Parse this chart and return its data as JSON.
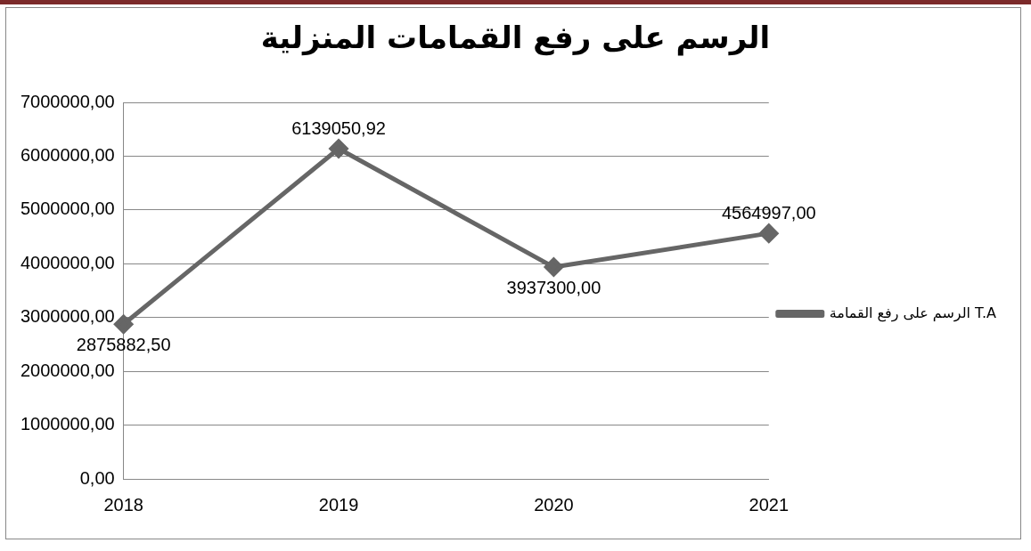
{
  "chart_data": {
    "type": "line",
    "title": "الرسم على رفع القمامات المنزلية",
    "categories": [
      "2018",
      "2019",
      "2020",
      "2021"
    ],
    "series": [
      {
        "name": "الرسم على رفع القمامة T.A",
        "color": "#666666",
        "values": [
          2875882.5,
          6139050.92,
          3937300,
          4564997
        ],
        "value_labels": [
          "2875882,50",
          "6139050,92",
          "3937300,00",
          "4564997,00"
        ]
      }
    ],
    "ylim": [
      0,
      7000000
    ],
    "yticks": [
      {
        "value": 0,
        "label": "0,00"
      },
      {
        "value": 1000000,
        "label": "1000000,00"
      },
      {
        "value": 2000000,
        "label": "2000000,00"
      },
      {
        "value": 3000000,
        "label": "3000000,00"
      },
      {
        "value": 4000000,
        "label": "4000000,00"
      },
      {
        "value": 5000000,
        "label": "5000000,00"
      },
      {
        "value": 6000000,
        "label": "6000000,00"
      },
      {
        "value": 7000000,
        "label": "7000000,00"
      }
    ],
    "grid": "y",
    "legend": "right",
    "marker": "diamond",
    "line_style": "solid"
  }
}
